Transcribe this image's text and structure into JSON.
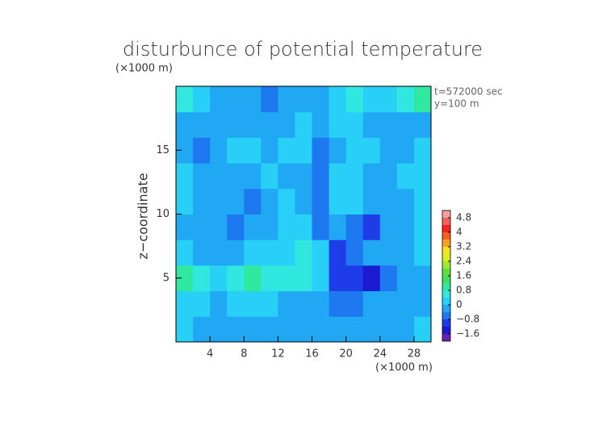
{
  "chart_data": {
    "type": "contour",
    "title": "disturbunce of potential temperature",
    "y_unit": "(×1000 m)",
    "x_unit": "(×1000 m)",
    "ylabel": "z−coordinate",
    "annotations": [
      "t=572000 sec",
      "y=100 m"
    ],
    "xlim": [
      0,
      30
    ],
    "ylim": [
      0,
      20
    ],
    "xticks": [
      4,
      8,
      12,
      16,
      20,
      24,
      28
    ],
    "yticks": [
      5,
      10,
      15
    ],
    "x": [
      1,
      3,
      5,
      7,
      9,
      11,
      13,
      15,
      17,
      19,
      21,
      23,
      25,
      27,
      29
    ],
    "y": [
      1,
      3,
      5,
      7,
      9,
      11,
      13,
      15,
      17,
      19
    ],
    "z": [
      [
        0.2,
        -0.1,
        -0.2,
        -0.4,
        -0.2,
        -0.3,
        -0.2,
        -0.1,
        -0.3,
        -0.2,
        -0.4,
        -0.3,
        -0.2,
        -0.1,
        0.0
      ],
      [
        0.3,
        0.1,
        -0.2,
        0.2,
        0.3,
        0.0,
        -0.3,
        -0.2,
        -0.4,
        -0.5,
        -0.6,
        -0.4,
        -0.3,
        -0.2,
        -0.1
      ],
      [
        0.8,
        0.4,
        0.1,
        0.6,
        1.0,
        0.7,
        0.6,
        0.7,
        0.2,
        -1.0,
        -1.2,
        -1.3,
        -0.6,
        -0.3,
        -0.2
      ],
      [
        0.1,
        -0.1,
        -0.2,
        -0.3,
        0.0,
        0.1,
        0.3,
        0.4,
        0.1,
        -1.1,
        -0.8,
        -0.3,
        -0.2,
        -0.1,
        0.0
      ],
      [
        -0.1,
        -0.2,
        -0.1,
        -0.5,
        -0.3,
        -0.2,
        0.0,
        0.1,
        -0.5,
        -0.3,
        -0.6,
        -0.9,
        -0.2,
        -0.1,
        0.0
      ],
      [
        0.0,
        -0.2,
        -0.1,
        -0.3,
        -0.6,
        -0.1,
        0.1,
        -0.3,
        -0.6,
        0.0,
        0.1,
        -0.2,
        -0.3,
        -0.1,
        0.1
      ],
      [
        0.1,
        -0.3,
        -0.2,
        -0.1,
        -0.3,
        0.0,
        -0.2,
        -0.1,
        -0.7,
        0.1,
        0.0,
        -0.3,
        -0.4,
        0.0,
        0.1
      ],
      [
        -0.3,
        -0.5,
        -0.2,
        0.0,
        0.1,
        -0.2,
        0.0,
        0.1,
        -0.6,
        -0.2,
        0.1,
        0.0,
        -0.3,
        -0.1,
        0.0
      ],
      [
        -0.2,
        -0.3,
        -0.4,
        -0.1,
        -0.2,
        -0.3,
        -0.1,
        0.0,
        -0.3,
        0.2,
        0.0,
        -0.2,
        -0.3,
        -0.4,
        -0.2
      ],
      [
        0.6,
        0.3,
        -0.2,
        -0.4,
        -0.3,
        -0.5,
        -0.3,
        -0.2,
        -0.3,
        0.2,
        0.4,
        0.3,
        0.3,
        0.5,
        1.0
      ]
    ],
    "colorbar": {
      "levels": [
        -2.0,
        -1.6,
        -1.2,
        -0.8,
        -0.4,
        0,
        0.4,
        0.8,
        1.2,
        1.6,
        2.0,
        2.4,
        2.8,
        3.2,
        3.6,
        4.0,
        4.4,
        4.8,
        5.2
      ],
      "colors": [
        "#6a1fb0",
        "#1a1ad0",
        "#1e3ce8",
        "#1e78f0",
        "#20a8f5",
        "#28d0f8",
        "#30e8e0",
        "#30e8a0",
        "#40e060",
        "#60e040",
        "#a0e830",
        "#d8f020",
        "#f8e020",
        "#f8a020",
        "#f86020",
        "#f82020",
        "#f86060",
        "#f8a0a0"
      ],
      "ticks": [
        4.8,
        4,
        3.2,
        2.4,
        1.6,
        0.8,
        0,
        {
          "value": -0.8,
          "label": "−0.8"
        },
        {
          "value": -1.6,
          "label": "−1.6"
        }
      ]
    }
  }
}
